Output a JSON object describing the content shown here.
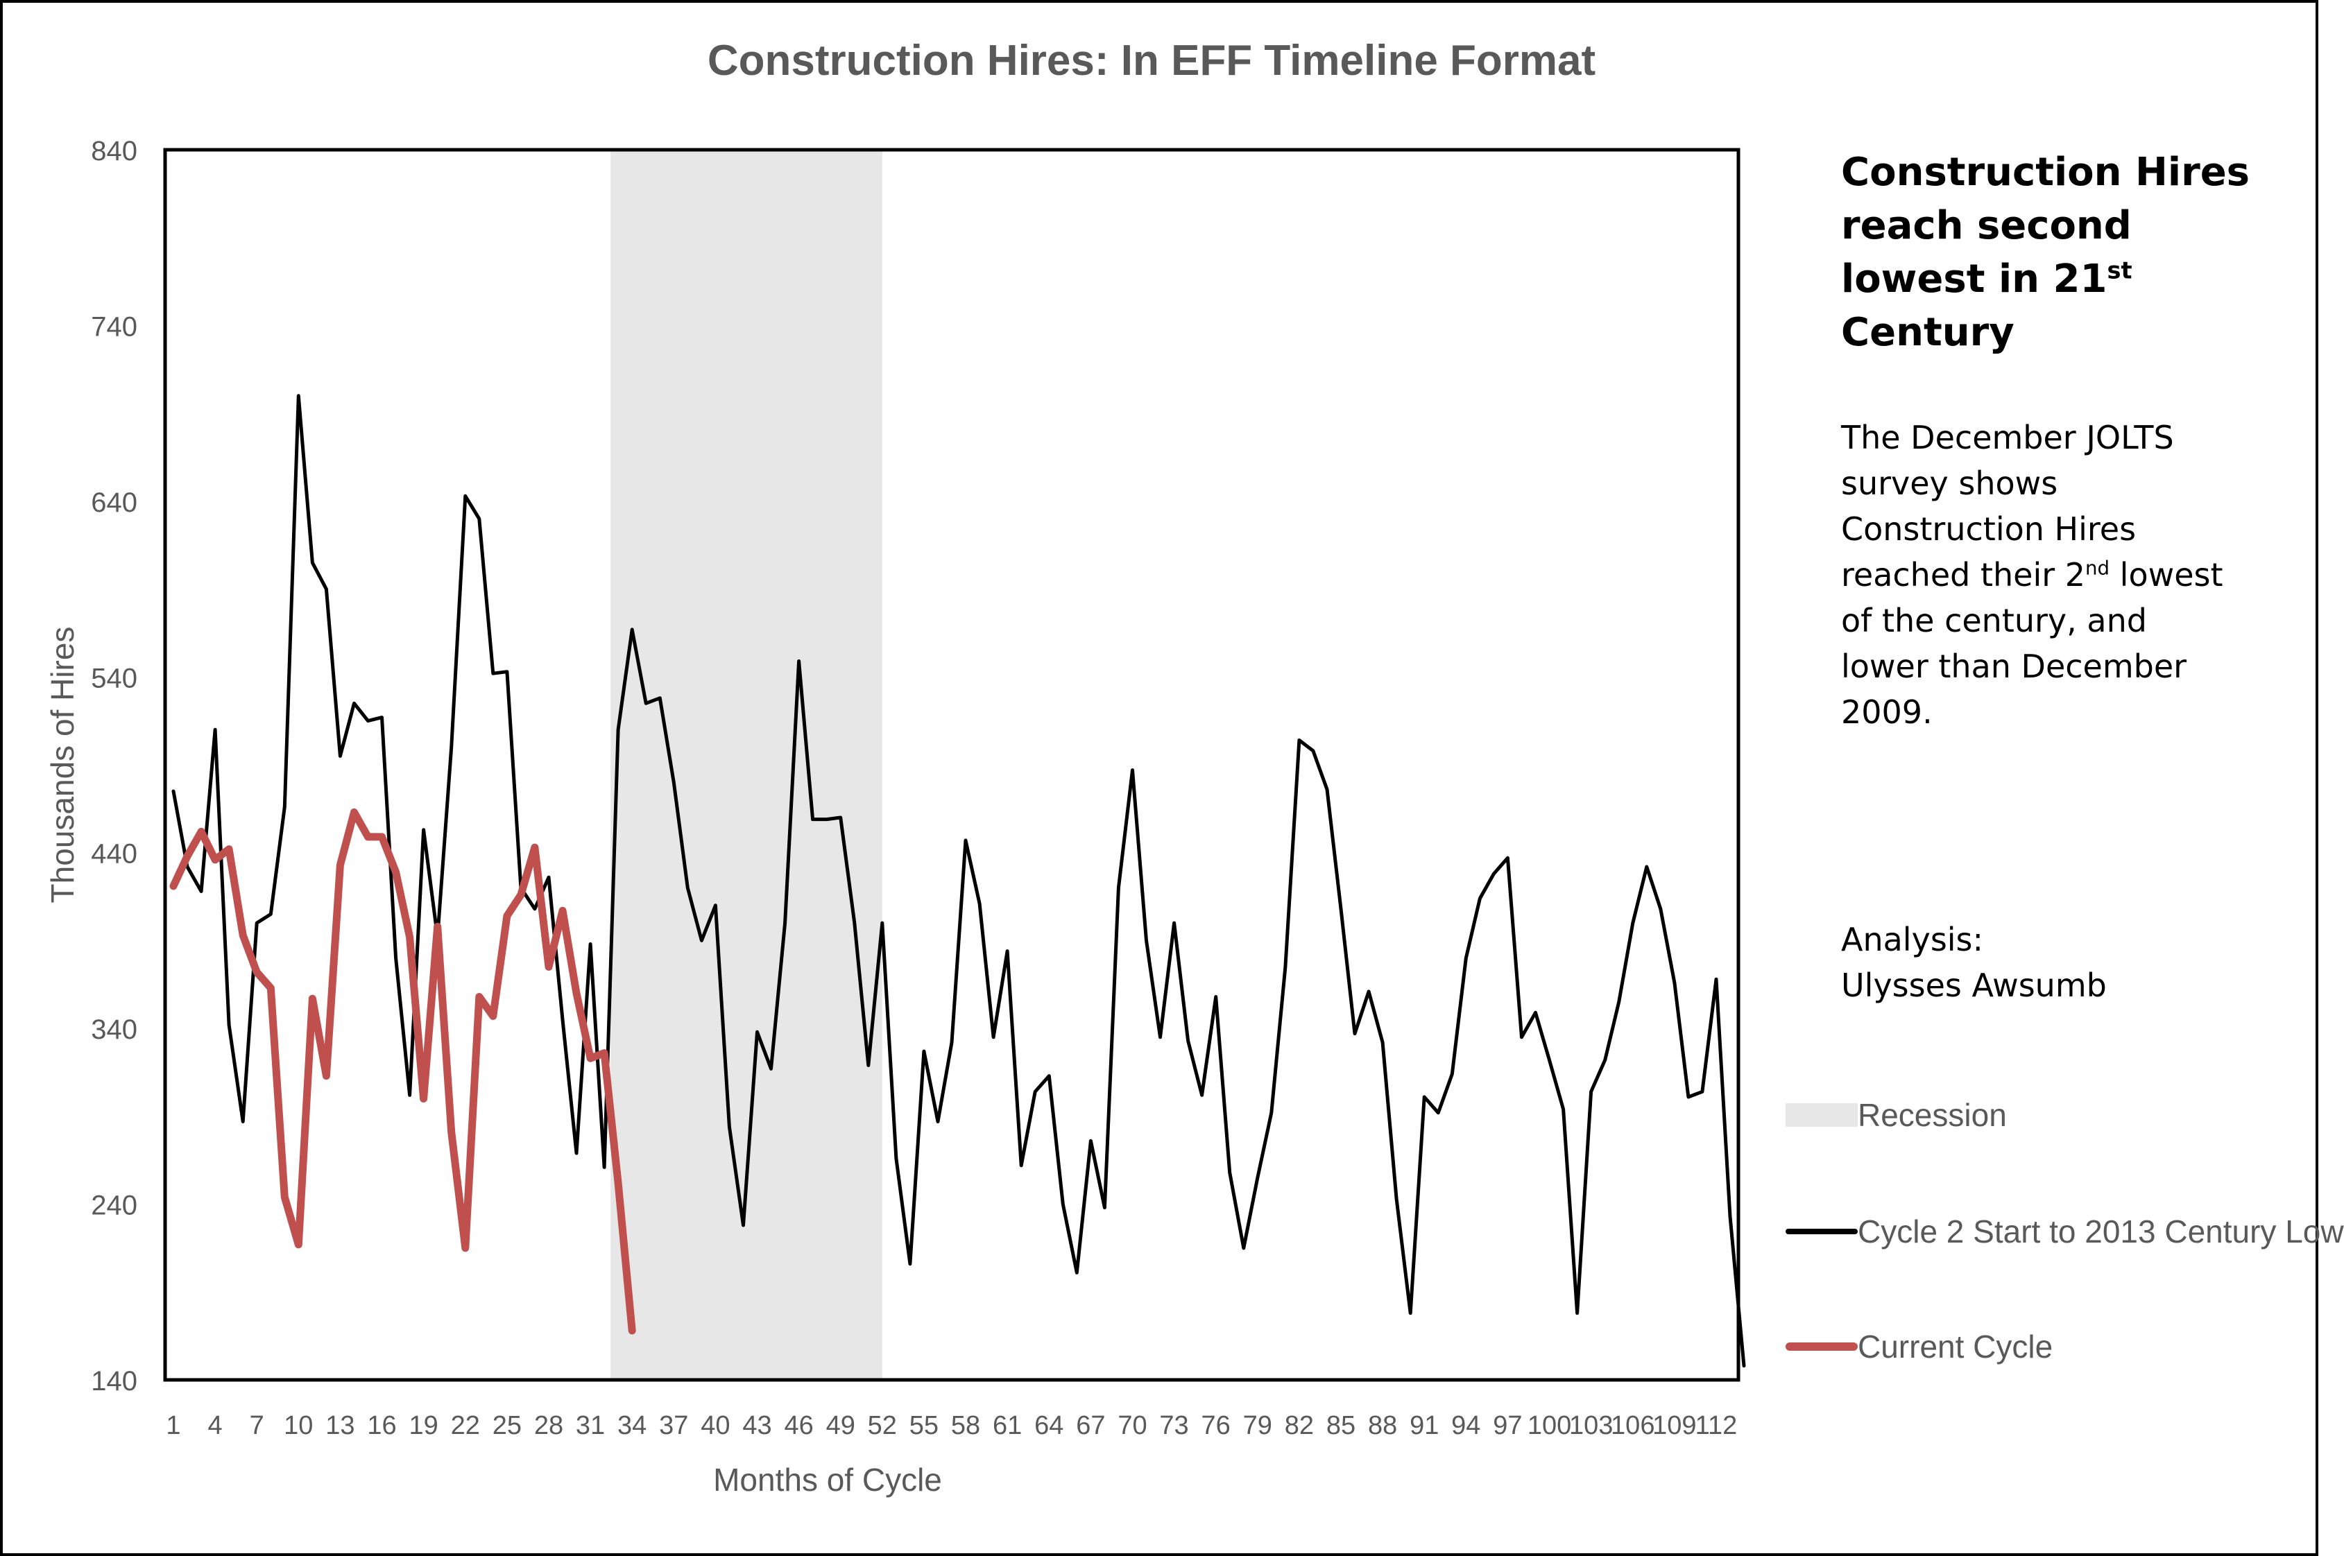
{
  "chart_data": {
    "type": "line",
    "title": "Construction Hires: In EFF Timeline Format",
    "xlabel": "Months of Cycle",
    "ylabel": "Thousands of Hires",
    "ylim": [
      140,
      840
    ],
    "yticks": [
      140,
      240,
      340,
      440,
      540,
      640,
      740,
      840
    ],
    "xlim": [
      1,
      113
    ],
    "xtick_labels": [
      "1",
      "4",
      "7",
      "10",
      "13",
      "16",
      "19",
      "22",
      "25",
      "28",
      "31",
      "34",
      "37",
      "40",
      "43",
      "46",
      "49",
      "52",
      "55",
      "58",
      "61",
      "64",
      "67",
      "70",
      "73",
      "76",
      "79",
      "82",
      "85",
      "88",
      "91",
      "94",
      "97",
      "100",
      "103",
      "106",
      "109",
      "112"
    ],
    "recession": {
      "label": "Recession",
      "start": 33,
      "end": 52
    },
    "series": [
      {
        "name": "Cycle 2 Start to 2013 Century Low",
        "color": "#000000",
        "values": [
          475,
          432,
          418,
          510,
          342,
          287,
          400,
          405,
          466,
          700,
          605,
          590,
          495,
          525,
          515,
          517,
          380,
          302,
          453,
          392,
          500,
          643,
          630,
          542,
          543,
          420,
          408,
          426,
          345,
          269,
          388,
          261,
          510,
          567,
          525,
          528,
          480,
          420,
          390,
          410,
          284,
          228,
          338,
          317,
          400,
          549,
          459,
          459,
          460,
          400,
          319,
          400,
          266,
          206,
          327,
          287,
          332,
          447,
          411,
          335,
          384,
          262,
          304,
          313,
          240,
          201,
          276,
          238,
          420,
          487,
          390,
          335,
          400,
          333,
          302,
          358,
          258,
          215,
          255,
          292,
          375,
          504,
          498,
          476,
          408,
          337,
          361,
          332,
          243,
          178,
          301,
          292,
          314,
          380,
          414,
          428,
          437,
          335,
          349,
          322,
          294,
          178,
          304,
          322,
          355,
          400,
          432,
          408,
          366,
          301,
          304,
          368,
          233,
          148
        ]
      },
      {
        "name": "Current Cycle",
        "color": "#c0504d",
        "values": [
          421,
          438,
          452,
          436,
          442,
          393,
          372,
          363,
          244,
          217,
          357,
          313,
          433,
          463,
          449,
          449,
          429,
          392,
          300,
          398,
          281,
          215,
          358,
          347,
          404,
          416,
          443,
          375,
          407,
          360,
          323,
          326,
          252,
          168
        ]
      }
    ],
    "legend_position": "right"
  },
  "sidebar": {
    "headline_parts": [
      "Construction Hires reach second lowest in 21",
      "st",
      " Century"
    ],
    "body_parts": [
      "The December JOLTS survey shows Construction Hires reached their 2",
      "nd",
      " lowest of the century, and lower than December 2009."
    ],
    "analysis_label": "Analysis:",
    "analyst": "Ulysses Awsumb"
  },
  "legend": {
    "recession": "Recession",
    "cycle2": "Cycle 2 Start to 2013 Century Low",
    "current": "Current Cycle"
  },
  "colors": {
    "recession_fill": "#e7e7e7",
    "cycle2_line": "#000000",
    "current_line": "#c0504d",
    "axis_text": "#595959"
  }
}
